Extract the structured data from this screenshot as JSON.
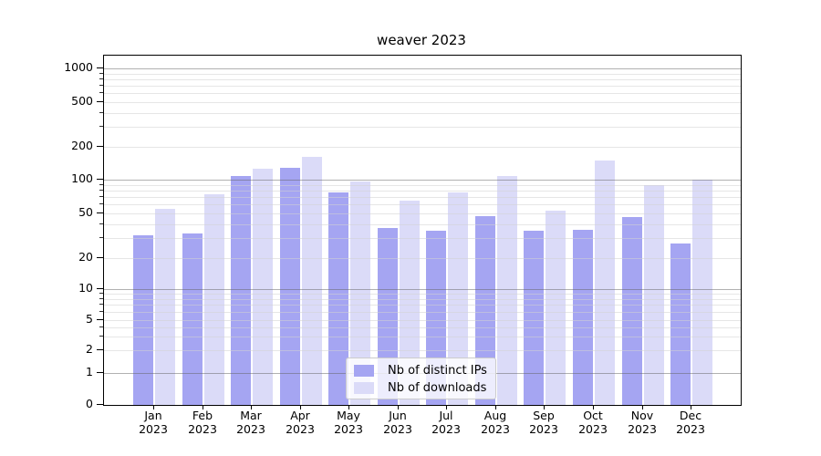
{
  "title": "weaver 2023",
  "legend": {
    "items": [
      {
        "label": "Nb of distinct IPs",
        "color": "#a5a5f2"
      },
      {
        "label": "Nb of downloads",
        "color": "#dbdbf8"
      }
    ]
  },
  "chart_data": {
    "type": "bar",
    "title": "weaver 2023",
    "categories": [
      "Jan 2023",
      "Feb 2023",
      "Mar 2023",
      "Apr 2023",
      "May 2023",
      "Jun 2023",
      "Jul 2023",
      "Aug 2023",
      "Sep 2023",
      "Oct 2023",
      "Nov 2023",
      "Dec 2023"
    ],
    "series": [
      {
        "name": "Nb of distinct IPs",
        "color": "#a5a5f2",
        "values": [
          32,
          33,
          107,
          128,
          77,
          37,
          35,
          47,
          35,
          36,
          46,
          27
        ]
      },
      {
        "name": "Nb of downloads",
        "color": "#dbdbf8",
        "values": [
          55,
          74,
          126,
          162,
          96,
          65,
          77,
          108,
          53,
          150,
          89,
          100
        ]
      }
    ],
    "xlabel": "",
    "ylabel": "",
    "yscale": "symlog",
    "ylim": [
      0,
      1276
    ],
    "yticks": [
      0,
      1,
      2,
      5,
      10,
      20,
      50,
      100,
      200,
      500,
      1000
    ],
    "grid": true,
    "grid_minor": true,
    "legend_position": "lower center",
    "bar_colors": {
      "distinct_ips": "#a5a5f2",
      "downloads": "#dbdbf8"
    }
  }
}
